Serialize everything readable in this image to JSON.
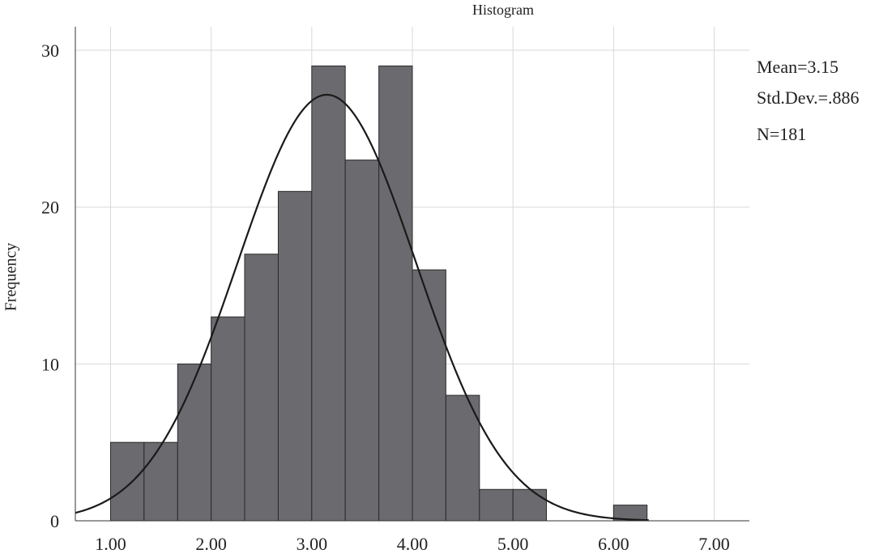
{
  "chart_data": {
    "type": "bar",
    "title": "Histogram",
    "xlabel": "",
    "ylabel": "Frequency",
    "xlim": [
      0.65,
      7.35
    ],
    "ylim": [
      0,
      31.5
    ],
    "x_ticks": [
      1.0,
      2.0,
      3.0,
      4.0,
      5.0,
      6.0,
      7.0
    ],
    "x_tick_labels": [
      "1.00",
      "2.00",
      "3.00",
      "4.00",
      "5.00",
      "6.00",
      "7.00"
    ],
    "y_ticks": [
      0,
      10,
      20,
      30
    ],
    "y_tick_labels": [
      "0",
      "10",
      "20",
      "30"
    ],
    "grid": true,
    "bar_color": "#6b6b6f",
    "bins": [
      {
        "start": 1.0,
        "end": 1.333,
        "count": 5
      },
      {
        "start": 1.333,
        "end": 1.667,
        "count": 5
      },
      {
        "start": 1.667,
        "end": 2.0,
        "count": 10
      },
      {
        "start": 2.0,
        "end": 2.333,
        "count": 13
      },
      {
        "start": 2.333,
        "end": 2.667,
        "count": 17
      },
      {
        "start": 2.667,
        "end": 3.0,
        "count": 21
      },
      {
        "start": 3.0,
        "end": 3.333,
        "count": 29
      },
      {
        "start": 3.333,
        "end": 3.667,
        "count": 23
      },
      {
        "start": 3.667,
        "end": 4.0,
        "count": 29
      },
      {
        "start": 4.0,
        "end": 4.333,
        "count": 16
      },
      {
        "start": 4.333,
        "end": 4.667,
        "count": 8
      },
      {
        "start": 4.667,
        "end": 5.0,
        "count": 2
      },
      {
        "start": 5.0,
        "end": 5.333,
        "count": 2
      },
      {
        "start": 6.0,
        "end": 6.333,
        "count": 1
      }
    ],
    "normal_curve": {
      "mean": 3.15,
      "std": 0.886,
      "n": 181,
      "bin_width": 0.3333,
      "x_range": [
        0.65,
        6.35
      ]
    },
    "stats": {
      "mean_label": "Mean=3.15",
      "std_label": "Std.Dev.=.886",
      "n_label": "N=181"
    }
  }
}
